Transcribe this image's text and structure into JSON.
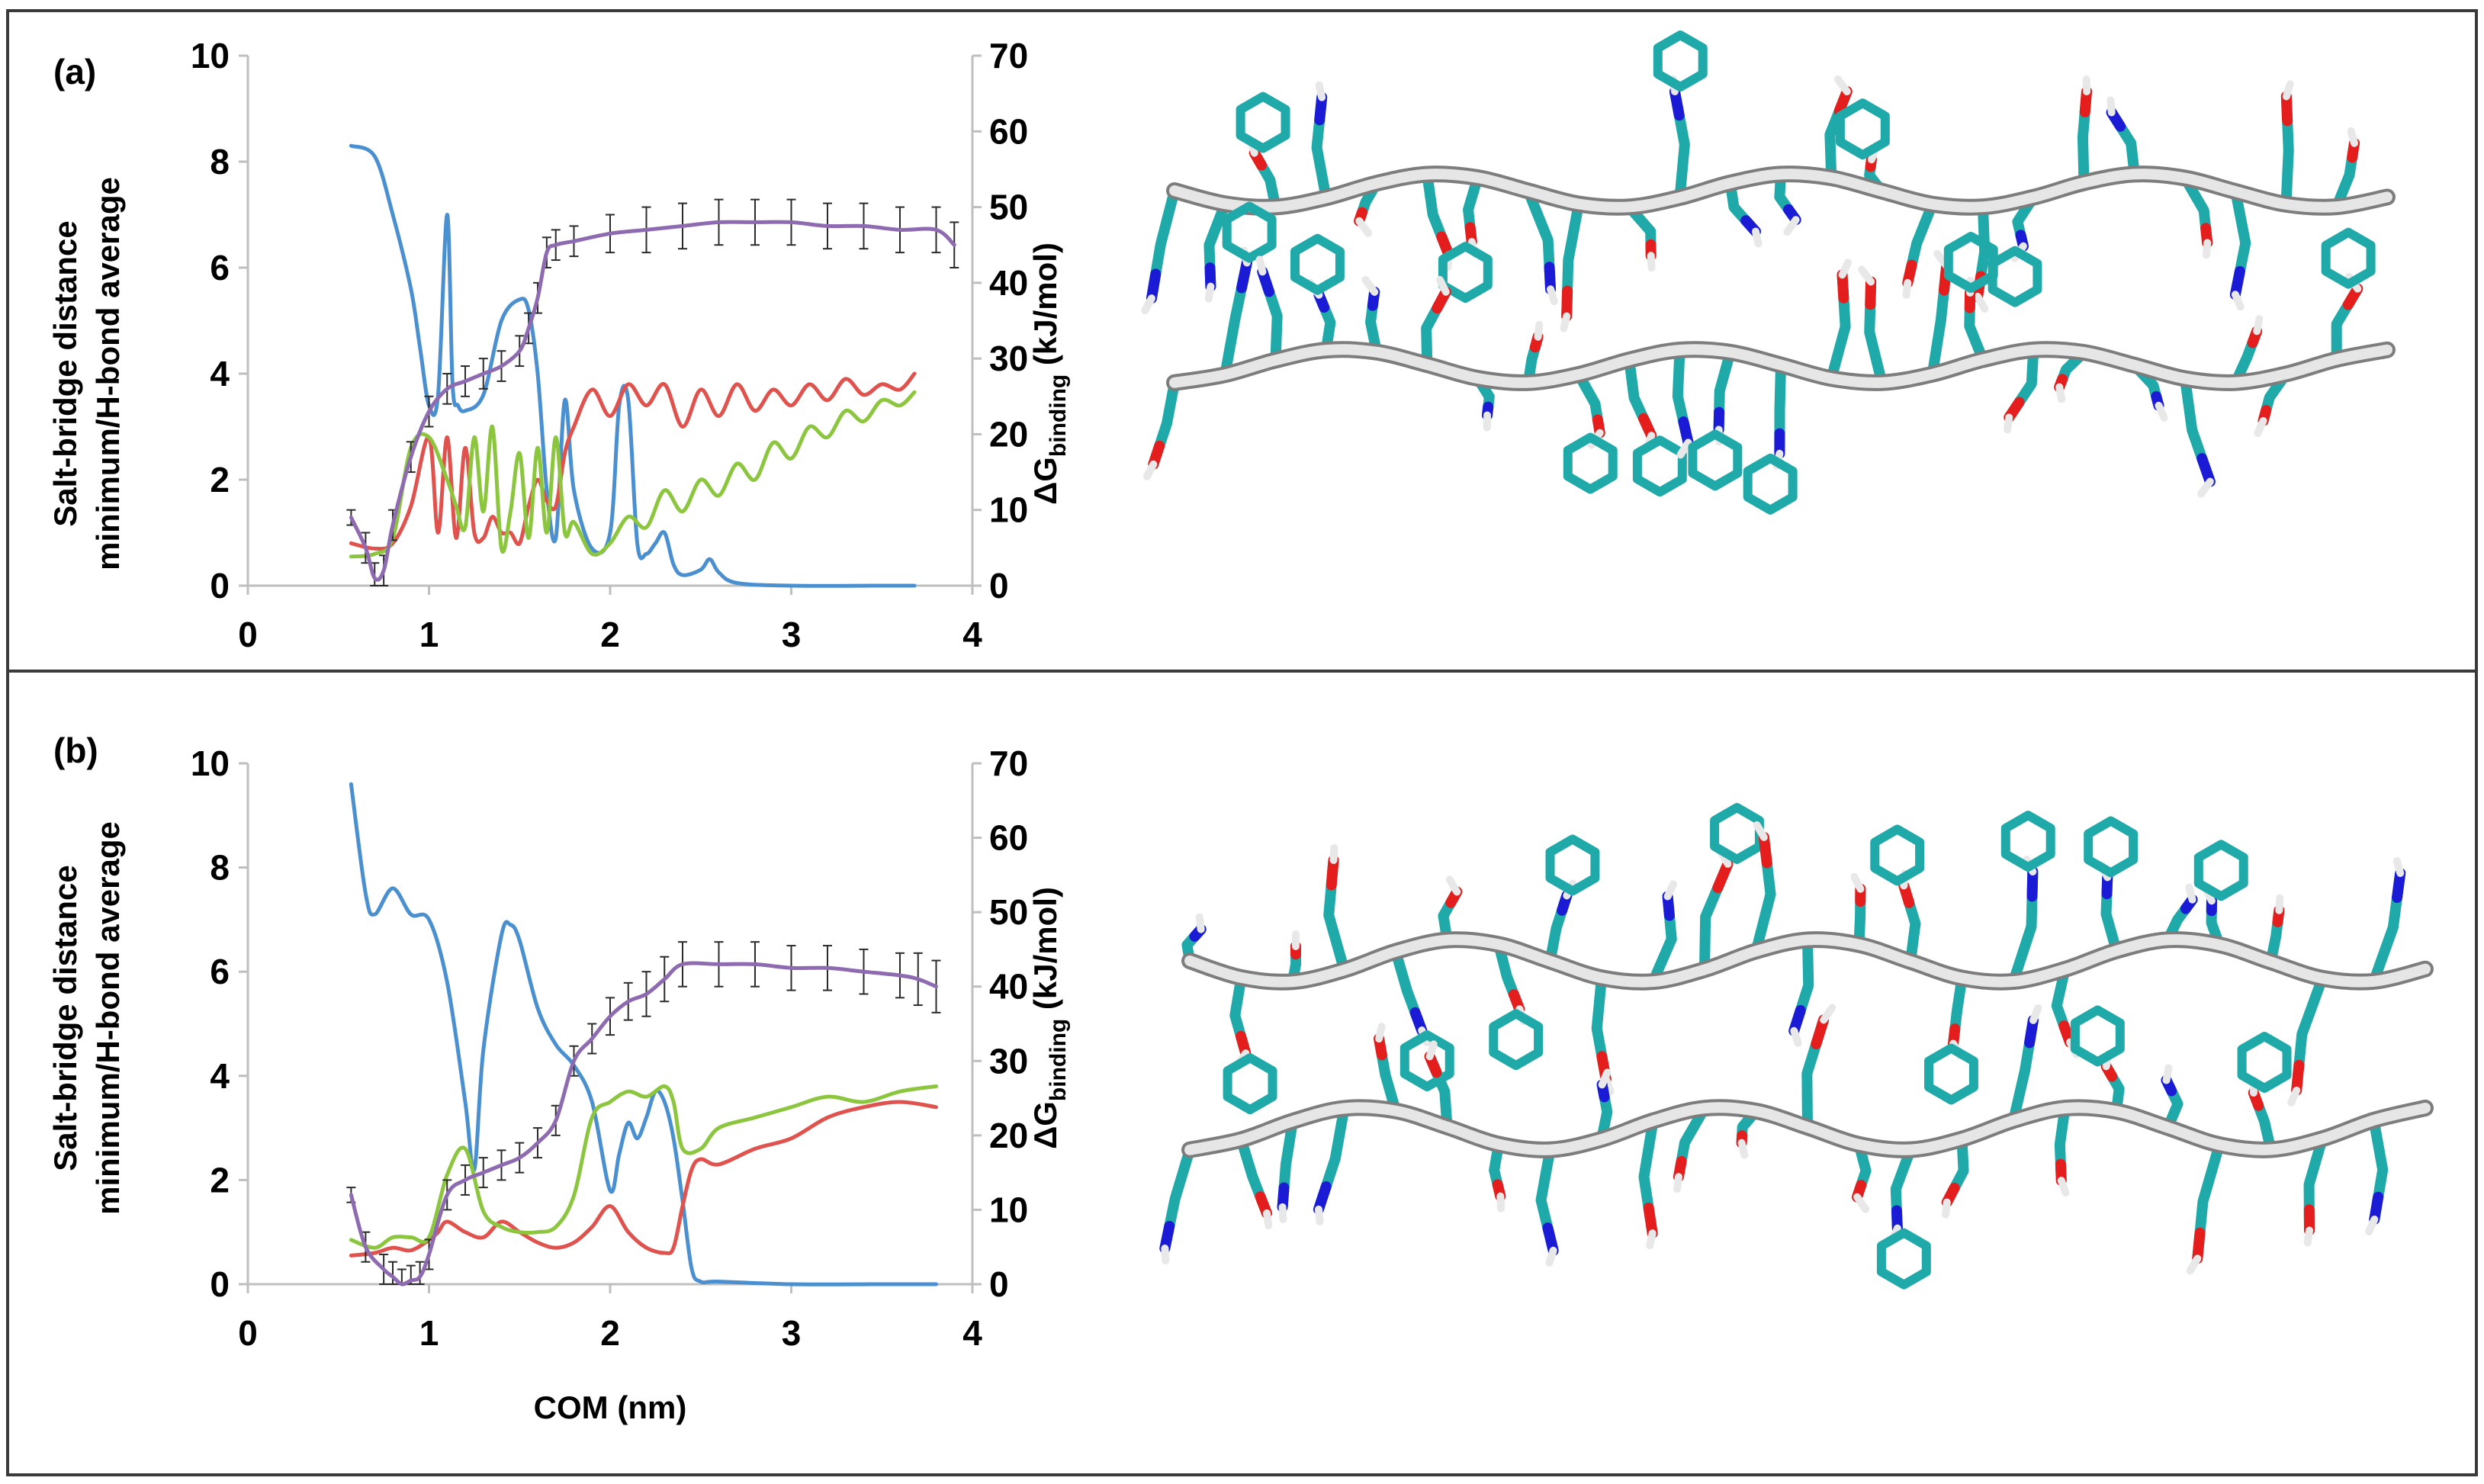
{
  "chart_data": [
    {
      "panel_label": "(a)",
      "type": "line",
      "xlabel": "",
      "ylabel_left": [
        "Salt-bridge distance",
        "minimum/H-bond average"
      ],
      "ylabel_right": {
        "prefix": "ΔG",
        "subscript": "binding",
        "suffix": " (kJ/mol)"
      },
      "xlim": [
        0,
        4
      ],
      "ylim_left": [
        0,
        10
      ],
      "ylim_right": [
        0,
        70
      ],
      "xticks": [
        "0",
        "1",
        "2",
        "3",
        "4"
      ],
      "yticks_left": [
        "0",
        "2",
        "4",
        "6",
        "8",
        "10"
      ],
      "yticks_right": [
        "0",
        "10",
        "20",
        "30",
        "40",
        "50",
        "60",
        "70"
      ],
      "grid": false,
      "series": [
        {
          "color": "#4a90d0",
          "axis": "left",
          "x": [
            0.57,
            0.7,
            0.8,
            0.9,
            0.95,
            1.0,
            1.05,
            1.1,
            1.13,
            1.16,
            1.2,
            1.3,
            1.4,
            1.5,
            1.55,
            1.6,
            1.65,
            1.7,
            1.75,
            1.8,
            1.9,
            2.0,
            2.05,
            2.1,
            2.15,
            2.2,
            2.25,
            2.3,
            2.35,
            2.4,
            2.5,
            2.55,
            2.6,
            2.7,
            3.0,
            3.5,
            3.68
          ],
          "y": [
            8.3,
            8.1,
            7.0,
            5.6,
            4.5,
            3.4,
            3.6,
            7.0,
            3.8,
            3.4,
            3.3,
            3.6,
            5.0,
            5.4,
            5.2,
            4.0,
            1.8,
            0.9,
            3.5,
            1.8,
            0.7,
            1.0,
            3.4,
            3.5,
            0.8,
            0.6,
            0.8,
            1.0,
            0.4,
            0.2,
            0.3,
            0.5,
            0.25,
            0.05,
            0.0,
            0.0,
            0.0
          ]
        },
        {
          "color": "#e0524d",
          "axis": "left",
          "x": [
            0.57,
            0.7,
            0.8,
            0.9,
            1.0,
            1.05,
            1.1,
            1.15,
            1.2,
            1.25,
            1.3,
            1.35,
            1.4,
            1.45,
            1.5,
            1.55,
            1.6,
            1.65,
            1.7,
            1.75,
            1.8,
            1.9,
            2.0,
            2.1,
            2.2,
            2.3,
            2.4,
            2.5,
            2.6,
            2.7,
            2.8,
            2.9,
            3.0,
            3.1,
            3.2,
            3.3,
            3.4,
            3.5,
            3.6,
            3.68
          ],
          "y": [
            0.8,
            0.7,
            0.8,
            1.5,
            2.8,
            1.0,
            2.8,
            0.9,
            2.6,
            1.0,
            0.9,
            1.3,
            1.0,
            1.0,
            0.8,
            1.5,
            2.0,
            1.6,
            1.5,
            2.5,
            3.0,
            3.7,
            3.2,
            3.8,
            3.4,
            3.8,
            3.0,
            3.7,
            3.2,
            3.8,
            3.3,
            3.7,
            3.4,
            3.8,
            3.5,
            3.9,
            3.6,
            3.8,
            3.7,
            4.0
          ]
        },
        {
          "color": "#8cc63f",
          "axis": "left",
          "x": [
            0.57,
            0.7,
            0.8,
            0.9,
            1.0,
            1.1,
            1.15,
            1.2,
            1.25,
            1.3,
            1.35,
            1.4,
            1.45,
            1.5,
            1.55,
            1.6,
            1.65,
            1.7,
            1.75,
            1.8,
            1.9,
            2.0,
            2.1,
            2.2,
            2.3,
            2.4,
            2.5,
            2.6,
            2.7,
            2.8,
            2.9,
            3.0,
            3.1,
            3.2,
            3.3,
            3.4,
            3.5,
            3.6,
            3.68
          ],
          "y": [
            0.55,
            0.6,
            0.9,
            2.6,
            2.8,
            2.0,
            1.5,
            1.1,
            2.8,
            1.4,
            3.0,
            0.7,
            1.4,
            2.5,
            0.9,
            2.6,
            1.0,
            2.8,
            1.0,
            1.2,
            0.6,
            0.8,
            1.3,
            1.1,
            1.8,
            1.4,
            2.0,
            1.7,
            2.3,
            2.0,
            2.7,
            2.4,
            3.0,
            2.8,
            3.3,
            3.1,
            3.5,
            3.4,
            3.65
          ]
        },
        {
          "color": "#8e6bb0",
          "axis": "right",
          "error_bars": true,
          "x": [
            0.57,
            0.65,
            0.7,
            0.75,
            0.8,
            0.9,
            1.0,
            1.1,
            1.2,
            1.3,
            1.4,
            1.5,
            1.55,
            1.6,
            1.65,
            1.7,
            1.8,
            2.0,
            2.2,
            2.4,
            2.6,
            2.8,
            3.0,
            3.2,
            3.4,
            3.6,
            3.8,
            3.9
          ],
          "y": [
            9,
            5,
            1,
            2,
            8,
            17,
            23,
            26,
            27,
            28,
            29,
            31,
            34,
            38,
            44,
            45,
            45.5,
            46.5,
            47,
            47.5,
            48,
            48,
            48,
            47.5,
            47.5,
            47,
            47,
            45
          ],
          "err": [
            1,
            2,
            2,
            2,
            2,
            2,
            2,
            2,
            2,
            2,
            2,
            2,
            2,
            2,
            2,
            2,
            2,
            2.5,
            3,
            3,
            3,
            3,
            3,
            3,
            3,
            3,
            3,
            3
          ]
        }
      ]
    },
    {
      "panel_label": "(b)",
      "type": "line",
      "xlabel": "COM (nm)",
      "ylabel_left": [
        "Salt-bridge distance",
        "minimum/H-bond average"
      ],
      "ylabel_right": {
        "prefix": "ΔG",
        "subscript": "binding",
        "suffix": " (kJ/mol)"
      },
      "xlim": [
        0,
        4
      ],
      "ylim_left": [
        0,
        10
      ],
      "ylim_right": [
        0,
        70
      ],
      "xticks": [
        "0",
        "1",
        "2",
        "3",
        "4"
      ],
      "yticks_left": [
        "0",
        "2",
        "4",
        "6",
        "8",
        "10"
      ],
      "yticks_right": [
        "0",
        "10",
        "20",
        "30",
        "40",
        "50",
        "60",
        "70"
      ],
      "grid": false,
      "series": [
        {
          "color": "#4a90d0",
          "axis": "left",
          "x": [
            0.57,
            0.65,
            0.7,
            0.8,
            0.9,
            1.0,
            1.1,
            1.2,
            1.25,
            1.3,
            1.4,
            1.45,
            1.5,
            1.6,
            1.7,
            1.8,
            1.9,
            2.0,
            2.05,
            2.1,
            2.15,
            2.2,
            2.25,
            2.3,
            2.35,
            2.4,
            2.45,
            2.5,
            2.6,
            3.0,
            3.5,
            3.8
          ],
          "y": [
            9.6,
            7.5,
            7.1,
            7.6,
            7.1,
            7.0,
            5.8,
            3.5,
            2.2,
            4.5,
            6.7,
            6.9,
            6.6,
            5.3,
            4.6,
            4.2,
            3.5,
            1.8,
            2.5,
            3.1,
            2.8,
            3.2,
            3.7,
            3.5,
            2.8,
            1.6,
            0.3,
            0.05,
            0.05,
            0.0,
            0.0,
            0.0
          ]
        },
        {
          "color": "#e0524d",
          "axis": "left",
          "x": [
            0.57,
            0.7,
            0.8,
            0.9,
            1.0,
            1.05,
            1.1,
            1.2,
            1.3,
            1.4,
            1.5,
            1.6,
            1.7,
            1.8,
            1.9,
            2.0,
            2.1,
            2.2,
            2.3,
            2.35,
            2.4,
            2.45,
            2.5,
            2.6,
            2.8,
            3.0,
            3.2,
            3.4,
            3.6,
            3.8
          ],
          "y": [
            0.55,
            0.6,
            0.7,
            0.65,
            0.85,
            1.0,
            1.2,
            1.0,
            0.9,
            1.2,
            1.0,
            0.8,
            0.7,
            0.8,
            1.1,
            1.5,
            1.0,
            0.7,
            0.6,
            0.7,
            1.5,
            2.2,
            2.4,
            2.3,
            2.6,
            2.8,
            3.2,
            3.4,
            3.5,
            3.4
          ]
        },
        {
          "color": "#8cc63f",
          "axis": "left",
          "x": [
            0.57,
            0.7,
            0.8,
            0.9,
            1.0,
            1.1,
            1.2,
            1.3,
            1.4,
            1.5,
            1.6,
            1.7,
            1.8,
            1.9,
            2.0,
            2.1,
            2.2,
            2.3,
            2.35,
            2.4,
            2.5,
            2.6,
            2.8,
            3.0,
            3.2,
            3.4,
            3.6,
            3.8
          ],
          "y": [
            0.85,
            0.7,
            0.9,
            0.9,
            0.9,
            2.1,
            2.6,
            1.4,
            1.1,
            1.0,
            1.0,
            1.1,
            1.7,
            3.2,
            3.5,
            3.7,
            3.6,
            3.8,
            3.5,
            2.6,
            2.6,
            3.0,
            3.2,
            3.4,
            3.6,
            3.5,
            3.7,
            3.8
          ]
        },
        {
          "color": "#8e6bb0",
          "axis": "right",
          "error_bars": true,
          "x": [
            0.57,
            0.65,
            0.75,
            0.8,
            0.85,
            0.9,
            0.95,
            1.0,
            1.1,
            1.2,
            1.3,
            1.4,
            1.5,
            1.6,
            1.7,
            1.8,
            1.9,
            2.0,
            2.1,
            2.2,
            2.3,
            2.4,
            2.6,
            2.8,
            3.0,
            3.2,
            3.4,
            3.6,
            3.7,
            3.8
          ],
          "y": [
            12,
            5,
            2,
            1,
            0,
            0.5,
            1,
            4,
            12,
            14,
            15,
            16,
            17,
            19,
            22,
            30,
            33,
            36,
            38,
            39,
            41,
            43,
            43,
            43,
            42.5,
            42.5,
            42,
            41.5,
            41,
            40
          ],
          "err": [
            1,
            2,
            2,
            2,
            2,
            2,
            2,
            2,
            2,
            2,
            2,
            2,
            2,
            2,
            2,
            2,
            2,
            2.5,
            2.5,
            3,
            3,
            3,
            3,
            3,
            3,
            3,
            3,
            3,
            3.5,
            3.5
          ]
        }
      ]
    }
  ],
  "molecule_colors": {
    "carbon": "#1fa9a9",
    "oxygen": "#e41d1d",
    "nitrogen": "#1b1bd6",
    "hydrogen": "#ffffff",
    "ribbon": "#d2d2d2"
  }
}
